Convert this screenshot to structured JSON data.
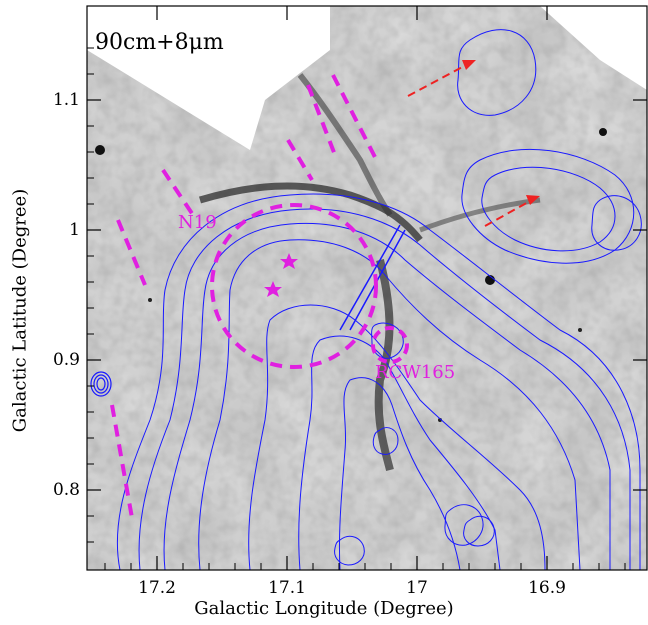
{
  "figure": {
    "panel_label": "90cm+8μm",
    "xlabel": "Galactic Longitude (Degree)",
    "ylabel": "Galactic Latitude (Degree)",
    "x_ticks": [
      "17.2",
      "17.1",
      "17",
      "16.9"
    ],
    "y_ticks": [
      "1.1",
      "1",
      "0.9",
      "0.8"
    ],
    "annotations": {
      "n19": "N19",
      "rcw165": "RCW165"
    },
    "colors": {
      "contours": "#1a1aff",
      "markers": "#e020e0",
      "arrows": "#ee2222"
    }
  }
}
